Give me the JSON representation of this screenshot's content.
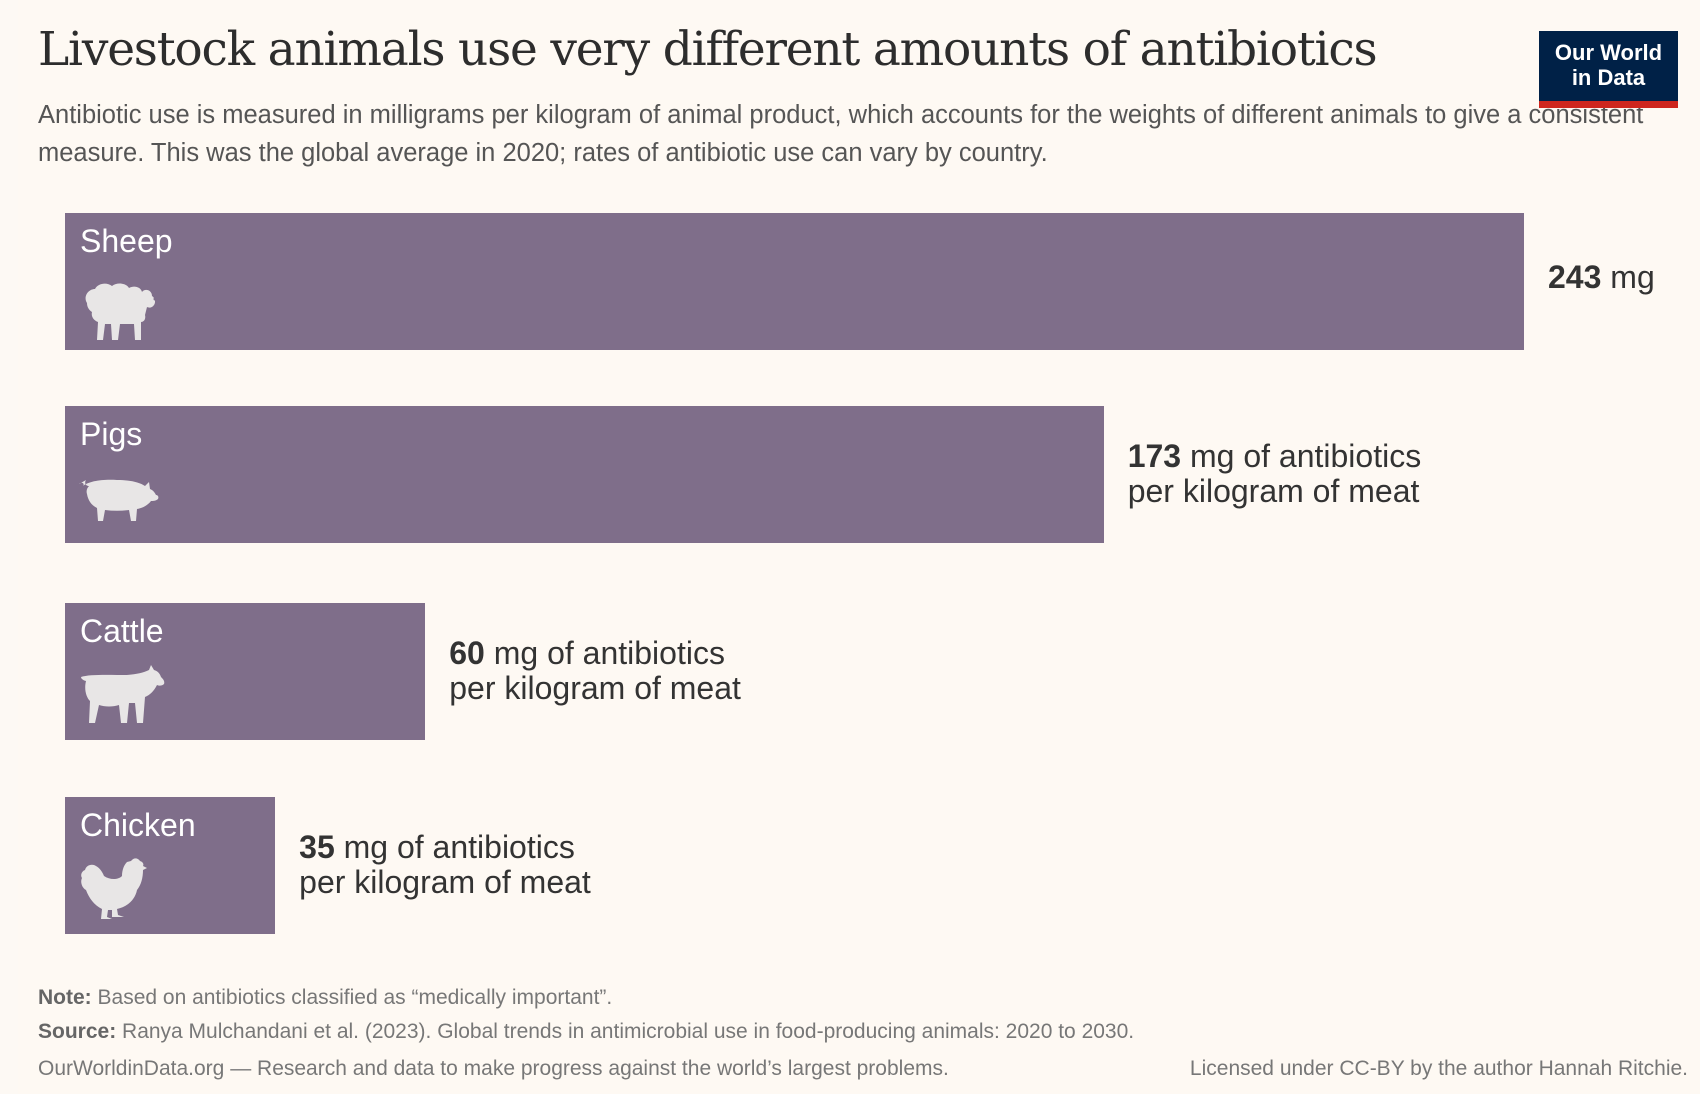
{
  "header": {
    "title": "Livestock animals use very different amounts of antibiotics",
    "subtitle": "Antibiotic use is measured in milligrams per kilogram of animal product, which accounts for the weights of different animals to give a consistent measure. This was the global average in 2020; rates of antibiotic use can vary by country.",
    "logo_line1": "Our World",
    "logo_line2": "in Data"
  },
  "colors": {
    "bar": "#7f6e8a",
    "background": "#fef9f3",
    "logo_bg": "#002147",
    "logo_accent": "#ce261e"
  },
  "chart_data": {
    "type": "bar",
    "orientation": "horizontal",
    "title": "Livestock animals use very different amounts of antibiotics",
    "unit": "mg of antibiotics per kilogram of meat",
    "categories": [
      "Sheep",
      "Pigs",
      "Cattle",
      "Chicken"
    ],
    "values": [
      243,
      173,
      60,
      35
    ],
    "icons": [
      "sheep-icon",
      "pig-icon",
      "cow-icon",
      "chicken-icon"
    ],
    "value_labels": [
      {
        "number": "243",
        "line1_rest": " mg",
        "line2": ""
      },
      {
        "number": "173",
        "line1_rest": " mg of antibiotics",
        "line2": "per kilogram of meat"
      },
      {
        "number": "60",
        "line1_rest": " mg of antibiotics",
        "line2": "per kilogram of meat"
      },
      {
        "number": "35",
        "line1_rest": " mg of antibiotics",
        "line2": "per kilogram of meat"
      }
    ],
    "xlim": [
      0,
      243
    ],
    "grid": false,
    "legend": "none"
  },
  "footer": {
    "note_label": "Note:",
    "note_text": " Based on antibiotics classified as “medically important”.",
    "source_label": "Source:",
    "source_text": " Ranya Mulchandani et al. (2023). Global trends in antimicrobial use in food-producing animals: 2020 to 2030.",
    "site_text": "OurWorldinData.org — Research and data to make progress against the world’s largest problems.",
    "license_text": "Licensed under CC-BY by the author Hannah Ritchie."
  }
}
